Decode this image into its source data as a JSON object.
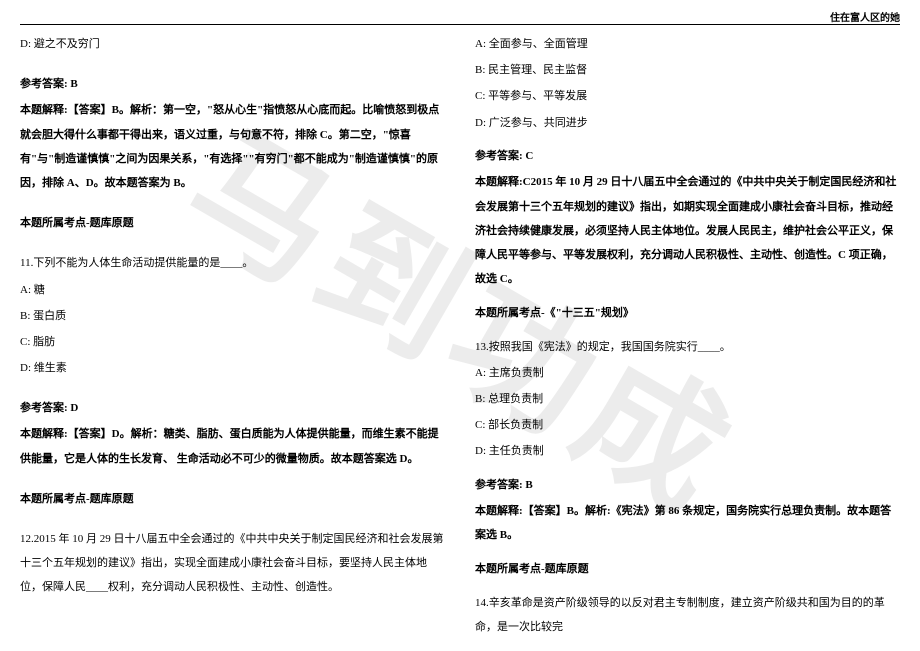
{
  "header": {
    "title": "住在富人区的她"
  },
  "watermark": {
    "text": "马到功成"
  },
  "left_column": {
    "q10_option_d": "D: 避之不及穷门",
    "q10_answer_label": "参考答案: B",
    "q10_explanation": "本题解释:【答案】B。解析：第一空，\"怒从心生\"指愤怒从心底而起。比喻愤怒到极点就会胆大得什么事都干得出来，语义过重，与句意不符，排除 C。第二空，\"惊喜有\"与\"制造谨慎慎\"之间为因果关系，\"有选择\"\"有穷门\"都不能成为\"制造谨慎慎\"的原因，排除 A、D。故本题答案为 B。",
    "q10_source": "本题所属考点-题库原题",
    "q11_stem": "11.下列不能为人体生命活动提供能量的是____。",
    "q11_option_a": "A: 糖",
    "q11_option_b": "B: 蛋白质",
    "q11_option_c": "C: 脂肪",
    "q11_option_d": "D: 维生素",
    "q11_answer_label": "参考答案: D",
    "q11_explanation": "本题解释:【答案】D。解析：糖类、脂肪、蛋白质能为人体提供能量，而维生素不能提供能量，它是人体的生长发育、 生命活动必不可少的微量物质。故本题答案选 D。",
    "q11_source": "本题所属考点-题库原题",
    "q12_stem": "12.2015 年 10 月 29 日十八届五中全会通过的《中共中央关于制定国民经济和社会发展第十三个五年规划的建议》指出，实现全面建成小康社会奋斗目标，要坚持人民主体地位，保障人民____权利，充分调动人民积极性、主动性、创造性。"
  },
  "right_column": {
    "q12_option_a": "A: 全面参与、全面管理",
    "q12_option_b": "B: 民主管理、民主监督",
    "q12_option_c": "C: 平等参与、平等发展",
    "q12_option_d": "D: 广泛参与、共同进步",
    "q12_answer_label": "参考答案: C",
    "q12_explanation": "本题解释:C2015 年 10 月 29 日十八届五中全会通过的《中共中央关于制定国民经济和社会发展第十三个五年规划的建议》指出，如期实现全面建成小康社会奋斗目标，推动经济社会持续健康发展，必须坚持人民主体地位。发展人民民主，维护社会公平正义，保障人民平等参与、平等发展权利，充分调动人民积极性、主动性、创造性。C 项正确，故选 C。",
    "q12_source": "本题所属考点-《\"十三五\"规划》",
    "q13_stem": "13.按照我国《宪法》的规定，我国国务院实行____。",
    "q13_option_a": "A: 主席负责制",
    "q13_option_b": "B: 总理负责制",
    "q13_option_c": "C: 部长负责制",
    "q13_option_d": "D: 主任负责制",
    "q13_answer_label": "参考答案: B",
    "q13_explanation": "本题解释:【答案】B。解析:《宪法》第 86 条规定，国务院实行总理负责制。故本题答案选 B。",
    "q13_source": "本题所属考点-题库原题",
    "q14_stem": "14.辛亥革命是资产阶级领导的以反对君主专制制度，建立资产阶级共和国为目的的革命，是一次比较完"
  }
}
